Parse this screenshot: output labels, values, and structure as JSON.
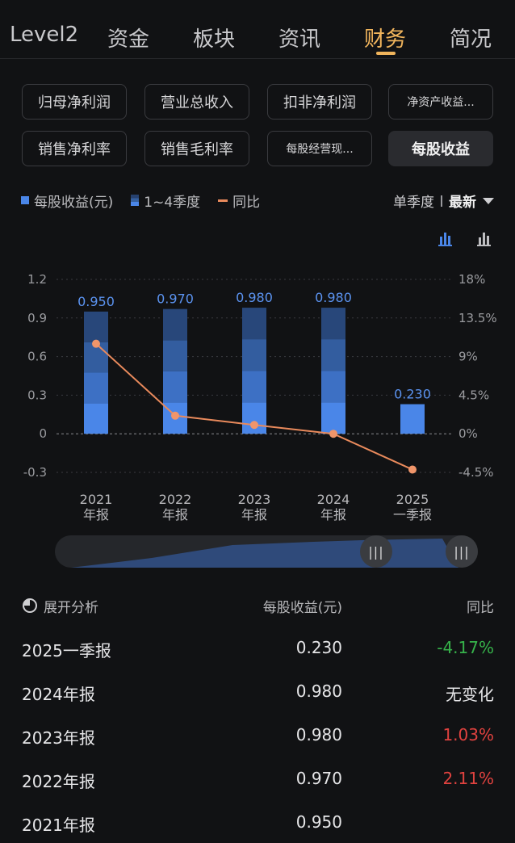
{
  "tabs": [
    {
      "label": "Level2",
      "active": false
    },
    {
      "label": "资金",
      "active": false
    },
    {
      "label": "板块",
      "active": false
    },
    {
      "label": "资讯",
      "active": false
    },
    {
      "label": "财务",
      "active": true
    },
    {
      "label": "简况",
      "active": false
    }
  ],
  "metrics": [
    {
      "label": "归母净利润",
      "active": false
    },
    {
      "label": "营业总收入",
      "active": false
    },
    {
      "label": "扣非净利润",
      "active": false
    },
    {
      "label": "净资产收益...",
      "active": false
    },
    {
      "label": "销售净利率",
      "active": false
    },
    {
      "label": "销售毛利率",
      "active": false
    },
    {
      "label": "每股经营现...",
      "active": false
    },
    {
      "label": "每股收益",
      "active": true
    }
  ],
  "legend": {
    "eps": "每股收益(元)",
    "quarters": "1~4季度",
    "yoy": "同比"
  },
  "period": {
    "mode": "单季度",
    "latest": "最新"
  },
  "colors": {
    "accent": "#f0b45c",
    "bar": "#4a86e8",
    "line": "#e98a5c",
    "up": "#e0423f",
    "down": "#36b24a"
  },
  "chart_data": {
    "type": "bar",
    "categories": [
      [
        "2021",
        "年报"
      ],
      [
        "2022",
        "年报"
      ],
      [
        "2023",
        "年报"
      ],
      [
        "2024",
        "年报"
      ],
      [
        "2025",
        "一季报"
      ]
    ],
    "series": [
      {
        "name": "每股收益(元)",
        "values": [
          0.95,
          0.97,
          0.98,
          0.98,
          0.23
        ],
        "value_labels": [
          "0.950",
          "0.970",
          "0.980",
          "0.980",
          "0.230"
        ],
        "stacked_quarters": [
          true,
          true,
          true,
          true,
          false
        ]
      },
      {
        "name": "同比",
        "type": "line",
        "axis": "right",
        "values": [
          10.5,
          2.11,
          1.03,
          0,
          -4.17
        ]
      }
    ],
    "y_left": {
      "min": -0.3,
      "max": 1.2,
      "ticks": [
        "1.2",
        "0.9",
        "0.6",
        "0.3",
        "0",
        "-0.3"
      ]
    },
    "y_right": {
      "min": -4.5,
      "max": 18,
      "ticks": [
        "18%",
        "13.5%",
        "9%",
        "4.5%",
        "0%",
        "-4.5%"
      ]
    },
    "grid": true
  },
  "table": {
    "headers": {
      "name": "展开分析",
      "eps": "每股收益(元)",
      "yoy": "同比"
    },
    "rows": [
      {
        "period": "2025一季报",
        "eps": "0.230",
        "yoy": "-4.17%",
        "trend": "down"
      },
      {
        "period": "2024年报",
        "eps": "0.980",
        "yoy": "无变化",
        "trend": "flat"
      },
      {
        "period": "2023年报",
        "eps": "0.980",
        "yoy": "1.03%",
        "trend": "up"
      },
      {
        "period": "2022年报",
        "eps": "0.970",
        "yoy": "2.11%",
        "trend": "up"
      },
      {
        "period": "2021年报",
        "eps": "0.950",
        "yoy": "",
        "trend": "up"
      }
    ]
  }
}
